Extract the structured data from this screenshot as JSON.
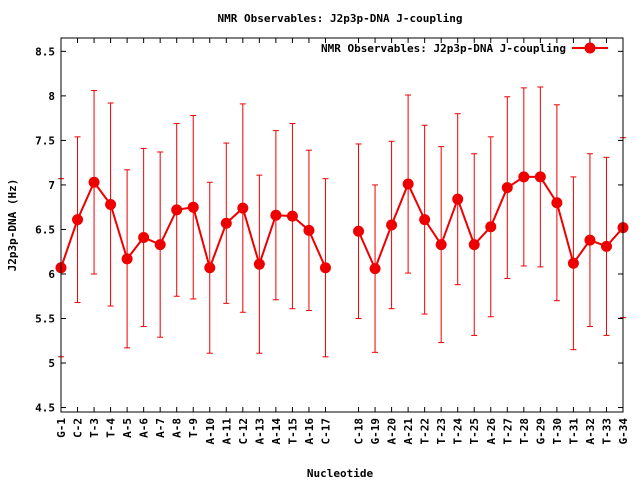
{
  "chart_data": {
    "type": "line",
    "title": "NMR Observables: J2p3p-DNA J-coupling",
    "xlabel": "Nucleotide",
    "ylabel": "J2p3p-DNA (Hz)",
    "ylim": [
      4.45,
      8.65
    ],
    "yticks": [
      "4.5",
      "5",
      "5.5",
      "6",
      "6.5",
      "7",
      "7.5",
      "8",
      "8.5"
    ],
    "categories": [
      "G-1",
      "C-2",
      "T-3",
      "T-4",
      "A-5",
      "A-6",
      "A-7",
      "A-8",
      "T-9",
      "A-10",
      "A-11",
      "C-12",
      "A-13",
      "A-14",
      "T-15",
      "A-16",
      "C-17",
      "C-18",
      "G-19",
      "A-20",
      "A-21",
      "T-22",
      "T-23",
      "T-24",
      "T-25",
      "A-26",
      "T-27",
      "T-28",
      "G-29",
      "T-30",
      "T-31",
      "A-32",
      "T-33",
      "G-34"
    ],
    "x_positions": [
      1,
      2,
      3,
      4,
      5,
      6,
      7,
      8,
      9,
      10,
      11,
      12,
      13,
      14,
      15,
      16,
      17,
      19,
      20,
      21,
      22,
      23,
      24,
      25,
      26,
      27,
      28,
      29,
      30,
      31,
      32,
      33,
      34,
      35
    ],
    "xlim": [
      1,
      35
    ],
    "grid": false,
    "legend_position": "top-right",
    "series": [
      {
        "name": "NMR Observables: J2p3p-DNA J-coupling",
        "color": "#ee0000",
        "values": [
          6.07,
          6.61,
          7.03,
          6.78,
          6.17,
          6.41,
          6.33,
          6.72,
          6.75,
          6.07,
          6.57,
          6.74,
          6.11,
          6.66,
          6.65,
          6.49,
          6.07,
          6.48,
          6.06,
          6.55,
          7.01,
          6.61,
          6.33,
          6.84,
          6.33,
          6.53,
          6.97,
          7.09,
          7.09,
          6.8,
          6.12,
          6.38,
          6.31,
          6.52
        ],
        "error": [
          1.0,
          0.93,
          1.03,
          1.14,
          1.0,
          1.0,
          1.04,
          0.97,
          1.03,
          0.96,
          0.9,
          1.17,
          1.0,
          0.95,
          1.04,
          0.9,
          1.0,
          0.98,
          0.94,
          0.94,
          1.0,
          1.06,
          1.1,
          0.96,
          1.02,
          1.01,
          1.02,
          1.0,
          1.01,
          1.1,
          0.97,
          0.97,
          1.0,
          1.01
        ]
      }
    ]
  }
}
